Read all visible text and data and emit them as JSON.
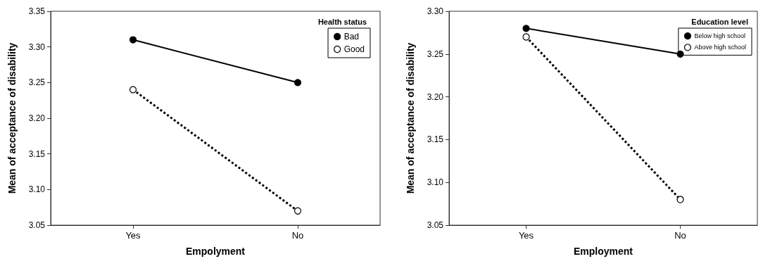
{
  "chart_data": [
    {
      "type": "line",
      "xlabel": "Empolyment",
      "ylabel": "Mean of acceptance of disability",
      "legend_title": "Health status",
      "categories": [
        "Yes",
        "No"
      ],
      "series": [
        {
          "name": "Bad",
          "color": "#000000",
          "values": [
            3.31,
            3.25
          ],
          "line_style": "solid"
        },
        {
          "name": "Good",
          "color": "#000000",
          "values": [
            3.24,
            3.07
          ],
          "line_style": "dotted"
        }
      ],
      "ylim": [
        3.05,
        3.35
      ],
      "yticks": [
        {
          "value": 3.05,
          "label": "3.05"
        },
        {
          "value": 3.1,
          "label": "3.10"
        },
        {
          "value": 3.15,
          "label": "3.15"
        },
        {
          "value": 3.2,
          "label": "3.20"
        },
        {
          "value": 3.25,
          "label": "3.25"
        },
        {
          "value": 3.3,
          "label": "3.30"
        },
        {
          "value": 3.35,
          "label": "3.35"
        }
      ],
      "grid": false,
      "legend": "top right",
      "marker": "circle"
    },
    {
      "type": "line",
      "xlabel": "Employment",
      "ylabel": "Mean of acceptance of disability",
      "legend_title": "Education level",
      "categories": [
        "Yes",
        "No"
      ],
      "series": [
        {
          "name": "Below high school",
          "color": "#000000",
          "values": [
            3.28,
            3.25
          ],
          "line_style": "solid"
        },
        {
          "name": "Above high school",
          "color": "#000000",
          "values": [
            3.27,
            3.08
          ],
          "line_style": "dotted"
        }
      ],
      "ylim": [
        3.05,
        3.3
      ],
      "yticks": [
        {
          "value": 3.05,
          "label": "3.05"
        },
        {
          "value": 3.1,
          "label": "3.10"
        },
        {
          "value": 3.15,
          "label": "3.15"
        },
        {
          "value": 3.2,
          "label": "3.20"
        },
        {
          "value": 3.25,
          "label": "3.25"
        },
        {
          "value": 3.3,
          "label": "3.30"
        }
      ],
      "grid": false,
      "legend": "top right",
      "marker": "circle"
    }
  ]
}
